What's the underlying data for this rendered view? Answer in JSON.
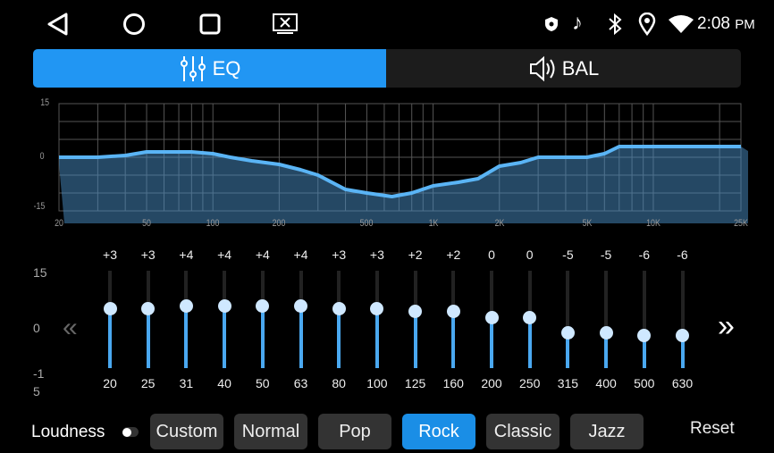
{
  "status_bar": {
    "time": "2:08",
    "ampm": "PM",
    "icons": [
      "shield-icon",
      "music-note-icon",
      "bluetooth-icon",
      "location-icon",
      "wifi-icon"
    ]
  },
  "nav": {
    "icons": [
      "back-icon",
      "home-icon",
      "recents-icon",
      "screencast-icon"
    ]
  },
  "tabs": [
    {
      "label": "EQ",
      "icon": "sliders-icon",
      "active": true
    },
    {
      "label": "BAL",
      "icon": "speaker-icon",
      "active": false
    }
  ],
  "graph": {
    "y_ticks": [
      "15",
      "0",
      "-15"
    ],
    "x_ticks": [
      {
        "f": 20,
        "label": "20"
      },
      {
        "f": 50,
        "label": "50"
      },
      {
        "f": 100,
        "label": "100"
      },
      {
        "f": 200,
        "label": "200"
      },
      {
        "f": 500,
        "label": "500"
      },
      {
        "f": 1000,
        "label": "1K"
      },
      {
        "f": 2000,
        "label": "2K"
      },
      {
        "f": 5000,
        "label": "5K"
      },
      {
        "f": 10000,
        "label": "10K"
      },
      {
        "f": 25000,
        "label": "25K"
      }
    ],
    "curve": [
      [
        20,
        0
      ],
      [
        30,
        0
      ],
      [
        40,
        0.5
      ],
      [
        50,
        1.5
      ],
      [
        80,
        1.5
      ],
      [
        100,
        1
      ],
      [
        120,
        0
      ],
      [
        150,
        -1
      ],
      [
        200,
        -2
      ],
      [
        250,
        -3.5
      ],
      [
        300,
        -5
      ],
      [
        400,
        -9
      ],
      [
        500,
        -10
      ],
      [
        650,
        -11
      ],
      [
        800,
        -10
      ],
      [
        1000,
        -8
      ],
      [
        1300,
        -7
      ],
      [
        1600,
        -6
      ],
      [
        2000,
        -2.5
      ],
      [
        2500,
        -1.5
      ],
      [
        3000,
        0
      ],
      [
        5000,
        0
      ],
      [
        6000,
        1
      ],
      [
        7000,
        3
      ],
      [
        25000,
        3
      ]
    ],
    "accent": "#5ab4f5"
  },
  "sliders": {
    "axis": [
      "15",
      "0",
      "-1",
      "5"
    ],
    "bands": [
      {
        "freq": "20",
        "value": "+3",
        "v": 3
      },
      {
        "freq": "25",
        "value": "+3",
        "v": 3
      },
      {
        "freq": "31",
        "value": "+4",
        "v": 4
      },
      {
        "freq": "40",
        "value": "+4",
        "v": 4
      },
      {
        "freq": "50",
        "value": "+4",
        "v": 4
      },
      {
        "freq": "63",
        "value": "+4",
        "v": 4
      },
      {
        "freq": "80",
        "value": "+3",
        "v": 3
      },
      {
        "freq": "100",
        "value": "+3",
        "v": 3
      },
      {
        "freq": "125",
        "value": "+2",
        "v": 2
      },
      {
        "freq": "160",
        "value": "+2",
        "v": 2
      },
      {
        "freq": "200",
        "value": "0",
        "v": 0
      },
      {
        "freq": "250",
        "value": "0",
        "v": 0
      },
      {
        "freq": "315",
        "value": "-5",
        "v": -5
      },
      {
        "freq": "400",
        "value": "-5",
        "v": -5
      },
      {
        "freq": "500",
        "value": "-6",
        "v": -6
      },
      {
        "freq": "630",
        "value": "-6",
        "v": -6
      }
    ]
  },
  "loudness": {
    "label": "Loudness",
    "on": false
  },
  "presets": [
    {
      "label": "Custom"
    },
    {
      "label": "Normal"
    },
    {
      "label": "Pop"
    },
    {
      "label": "Rock",
      "active": true
    },
    {
      "label": "Classic"
    },
    {
      "label": "Jazz"
    }
  ],
  "reset_label": "Reset",
  "colors": {
    "active": "#1a8ee6",
    "tab_active": "#2196f3"
  }
}
